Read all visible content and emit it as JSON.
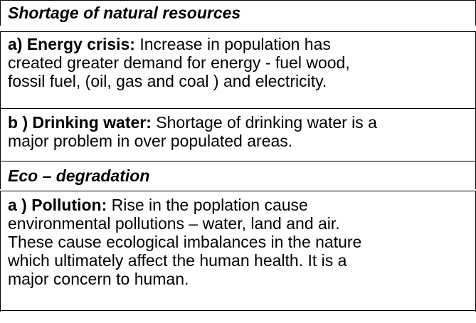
{
  "sections": [
    {
      "heading": "Shortage of natural resources",
      "items": [
        {
          "lead": "a) Energy crisis:",
          "lines": [
            " Increase in population has",
            "created greater demand for energy  - fuel wood,",
            "fossil fuel, (oil, gas and coal ) and electricity."
          ]
        },
        {
          "lead": "b ) Drinking water:",
          "lines": [
            " Shortage of drinking water is a",
            "major problem in over populated areas."
          ]
        }
      ]
    },
    {
      "heading": "Eco – degradation",
      "items": [
        {
          "lead": "a ) Pollution:",
          "lines": [
            " Rise in the poplation cause",
            "environmental pollutions – water, land and air.",
            "These  cause ecological imbalances in the nature",
            "which ultimately affect the human health. It is a",
            "major concern to human."
          ]
        }
      ]
    }
  ]
}
